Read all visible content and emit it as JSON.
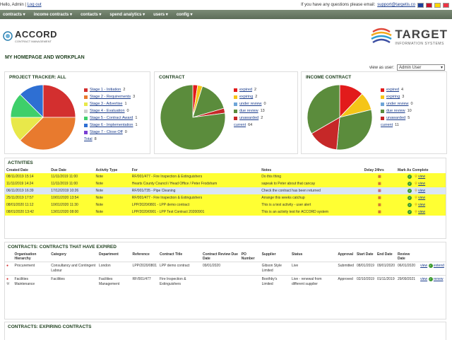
{
  "topbar": {
    "greeting": "Hello, Admin",
    "logout": "Log out",
    "support_text": "If you have any questions please email:",
    "support_email": "support@targetis.co"
  },
  "nav": {
    "items": [
      "contracts",
      "income contracts",
      "contacts",
      "spend analytics",
      "users",
      "config"
    ]
  },
  "brand": {
    "accord": "ACCORD",
    "accord_sub": "CONTRACT MANAGEMENT",
    "target": "TARGET",
    "target_sub": "INFORMATION SYSTEMS"
  },
  "page_title": "MY HOMEPAGE AND WORKPLAN",
  "view_as": {
    "label": "view as user:",
    "value": "Admin User"
  },
  "colors": {
    "nav": "#5d6d59",
    "highlight": "#ffff33",
    "accent": "#1d3f1d"
  },
  "chart_data": [
    {
      "type": "pie",
      "title": "PROJECT TRACKER: ALL",
      "labels": [
        "Stage 1 - Initiation",
        "Stage 2 - Requirements",
        "Stage 3 - Advertise",
        "Stage 4 - Evaluation",
        "Stage 5 - Contract Award",
        "Stage 6 - Implementation",
        "Stage 7 - Close Off",
        "Total"
      ],
      "values": [
        2,
        3,
        1,
        0,
        1,
        1,
        0,
        8
      ],
      "colors": [
        "#d32f2f",
        "#e87a2e",
        "#e8e84a",
        "#cfcfcf",
        "#3ecf6a",
        "#2e6fd3",
        "#7a3fd3",
        "#ffffff"
      ]
    },
    {
      "type": "pie",
      "title": "CONTRACT",
      "labels": [
        "expired",
        "expiring",
        "under review",
        "due review",
        "unawarded",
        "current"
      ],
      "values": [
        2,
        2,
        0,
        13,
        2,
        64
      ],
      "colors": [
        "#e21b1b",
        "#f5c518",
        "#6fa5d8",
        "#5b8c3c",
        "#c62828",
        "#ffffff"
      ]
    },
    {
      "type": "pie",
      "title": "INCOME CONTRACT",
      "labels": [
        "expired",
        "expiring",
        "under review",
        "due review",
        "unawarded",
        "current"
      ],
      "values": [
        4,
        3,
        0,
        10,
        5,
        11
      ],
      "colors": [
        "#e21b1b",
        "#f5c518",
        "#6fa5d8",
        "#5b8c3c",
        "#c62828",
        "#ffffff"
      ]
    }
  ],
  "activities": {
    "title": "ACTIVITIES",
    "headers": [
      "Created Date",
      "Due Date",
      "Activity Type",
      "For",
      "Notes",
      "Delay 24hrs",
      "Mark As Complete"
    ],
    "rows": [
      {
        "created": "08/11/2019 15:14",
        "due": "11/11/2019 11:00",
        "type": "Note",
        "for": "RF/001/477 - Fire Inspection & Extinguishers",
        "notes": "Do this thing",
        "style": "yellow",
        "view": "view"
      },
      {
        "created": "11/11/2019 14:24",
        "due": "11/11/2019 11:00",
        "type": "Note",
        "for": "Hearts County Council / Head Office / Peter Frodsham",
        "notes": "sapeak to Peter about that cancay",
        "style": "yellow",
        "view": "view"
      },
      {
        "created": "06/11/2019 16:39",
        "due": "17/12/2019 10:26",
        "type": "Note",
        "for": "RF/001/735 - Pipe Cleaning",
        "notes": "Check the contract has been returned",
        "style": "blue",
        "view": "view"
      },
      {
        "created": "25/11/2019 17:57",
        "due": "10/01/2020 13:54",
        "type": "Note",
        "for": "RF/001/477 - Fire Inspection & Extinguishers",
        "notes": "Arrange this weeks catchup",
        "style": "yellow",
        "view": "view"
      },
      {
        "created": "08/01/2020 11:12",
        "due": "10/01/2020 11:30",
        "type": "Note",
        "for": "LPP/2020/0801 - LPP demo contract",
        "notes": "This is a test activity - user alert",
        "style": "yellow",
        "view": "view"
      },
      {
        "created": "08/01/2020 13:42",
        "due": "13/01/2020 08:00",
        "type": "Note",
        "for": "LPP/2020/0901 - LPP Test Contract 20200901",
        "notes": "This is an activity test for ACCORD system",
        "style": "yellow",
        "view": "view"
      }
    ]
  },
  "expired": {
    "title": "CONTRACTS: CONTRACTS THAT HAVE EXPIRED",
    "headers": [
      "Organisation Hierarchy",
      "Category",
      "Department",
      "Reference",
      "Contract Title",
      "Contract Review Due Date",
      "PO Number",
      "Supplier",
      "Status",
      "Approval",
      "Start Date",
      "End Date",
      "Review Date"
    ],
    "rows": [
      {
        "org": "Procurement",
        "category": "Consultancy and Contingent Labour",
        "department": "London",
        "reference": "LPP/2020/0801",
        "title": "LPP demo contract",
        "review_due": "09/01/2020",
        "po": "",
        "supplier": "Gibson Style Limited",
        "status": "Live",
        "approval": "Submitted",
        "start": "08/01/2019",
        "end": "09/01/2020",
        "review": "06/01/2020",
        "view": "view",
        "action": "extend"
      },
      {
        "org": "Facilities Maintenance",
        "category": "Facilities",
        "department": "Facilities Management",
        "reference": "RF/001/477",
        "title": "Fire Inspection & Extinguishers",
        "review_due": "",
        "po": "",
        "supplier": "Boothby's Limited",
        "status": "Live - renewal from different supplier",
        "approval": "Approved",
        "start": "02/10/2019",
        "end": "01/11/2019",
        "review": "29/09/2021",
        "view": "view",
        "action": "renew"
      }
    ]
  },
  "expiring_title": "CONTRACTS: EXPIRING CONTRACTS"
}
